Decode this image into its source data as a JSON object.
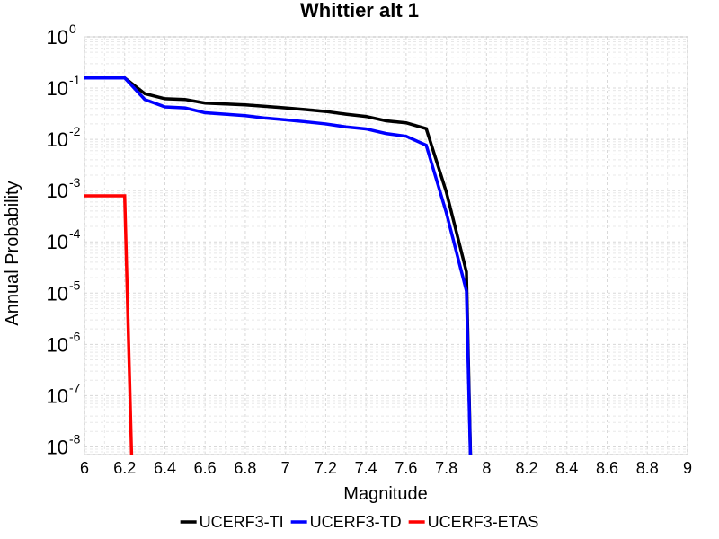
{
  "chart_data": {
    "type": "line",
    "title": "Whittier alt 1",
    "xlabel": "Magnitude",
    "ylabel": "Annual Probability",
    "xlim": [
      6,
      9
    ],
    "ylim_log10": [
      -8.15,
      0
    ],
    "y_scale": "log",
    "grid": true,
    "legend_position": "bottom",
    "x_ticks": [
      "6",
      "6.2",
      "6.4",
      "6.6",
      "6.8",
      "7",
      "7.2",
      "7.4",
      "7.6",
      "7.8",
      "8",
      "8.2",
      "8.4",
      "8.6",
      "8.8",
      "9"
    ],
    "y_ticks": [
      {
        "base": "10",
        "exp": "0",
        "value": 1
      },
      {
        "base": "10",
        "exp": "-1",
        "value": 0.1
      },
      {
        "base": "10",
        "exp": "-2",
        "value": 0.01
      },
      {
        "base": "10",
        "exp": "-3",
        "value": 0.001
      },
      {
        "base": "10",
        "exp": "-4",
        "value": 0.0001
      },
      {
        "base": "10",
        "exp": "-5",
        "value": 1e-05
      },
      {
        "base": "10",
        "exp": "-6",
        "value": 1e-06
      },
      {
        "base": "10",
        "exp": "-7",
        "value": 1e-07
      },
      {
        "base": "10",
        "exp": "-8",
        "value": 1e-08
      }
    ],
    "series": [
      {
        "name": "UCERF3-TI",
        "color": "#000000",
        "points": [
          [
            6.0,
            0.158
          ],
          [
            6.2,
            0.158
          ],
          [
            6.3,
            0.078
          ],
          [
            6.4,
            0.062
          ],
          [
            6.5,
            0.06
          ],
          [
            6.6,
            0.051
          ],
          [
            6.7,
            0.049
          ],
          [
            6.8,
            0.047
          ],
          [
            6.9,
            0.044
          ],
          [
            7.0,
            0.041
          ],
          [
            7.1,
            0.038
          ],
          [
            7.2,
            0.035
          ],
          [
            7.3,
            0.031
          ],
          [
            7.4,
            0.028
          ],
          [
            7.5,
            0.023
          ],
          [
            7.6,
            0.021
          ],
          [
            7.7,
            0.0162
          ],
          [
            7.8,
            0.00094
          ],
          [
            7.9,
            2.6e-05
          ],
          [
            7.925,
            1e-09
          ]
        ]
      },
      {
        "name": "UCERF3-TD",
        "color": "#0000ff",
        "points": [
          [
            6.0,
            0.158
          ],
          [
            6.2,
            0.158
          ],
          [
            6.3,
            0.06
          ],
          [
            6.4,
            0.043
          ],
          [
            6.5,
            0.041
          ],
          [
            6.6,
            0.033
          ],
          [
            6.7,
            0.031
          ],
          [
            6.8,
            0.029
          ],
          [
            6.9,
            0.026
          ],
          [
            7.0,
            0.024
          ],
          [
            7.1,
            0.022
          ],
          [
            7.2,
            0.02
          ],
          [
            7.3,
            0.0175
          ],
          [
            7.4,
            0.016
          ],
          [
            7.5,
            0.013
          ],
          [
            7.6,
            0.0115
          ],
          [
            7.7,
            0.0077
          ],
          [
            7.8,
            0.00037
          ],
          [
            7.9,
            1.1e-05
          ],
          [
            7.925,
            1e-09
          ]
        ]
      },
      {
        "name": "UCERF3-ETAS",
        "color": "#ff0000",
        "points": [
          [
            6.0,
            0.00079
          ],
          [
            6.2,
            0.00079
          ],
          [
            6.24,
            1e-09
          ]
        ]
      }
    ]
  }
}
